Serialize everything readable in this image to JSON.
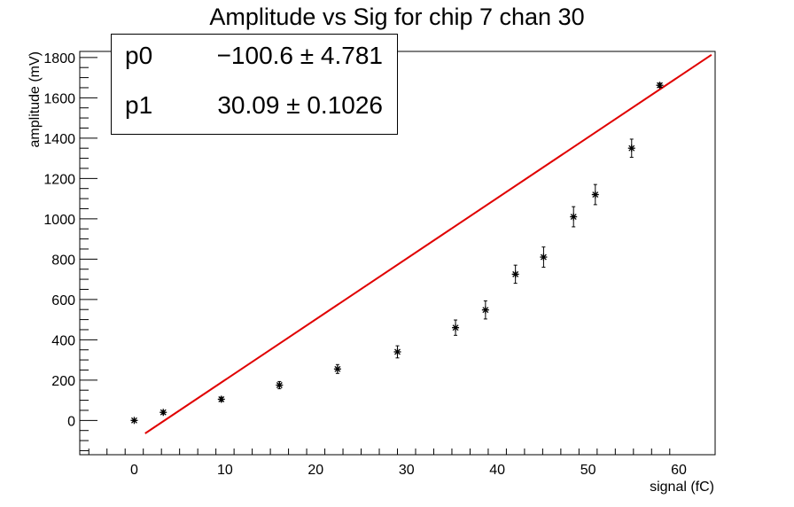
{
  "chart_data": {
    "type": "scatter",
    "title": "Amplitude vs Sig for chip 7 chan 30",
    "xlabel": "signal (fC)",
    "ylabel": "amplitude (mV)",
    "xlim": [
      -6,
      64
    ],
    "ylim": [
      -170,
      1830
    ],
    "x_ticks": [
      0,
      10,
      20,
      30,
      40,
      50,
      60
    ],
    "y_ticks": [
      0,
      200,
      400,
      600,
      800,
      1000,
      1200,
      1400,
      1600,
      1800
    ],
    "series": [
      {
        "marker": "star",
        "color": "#000000",
        "points": [
          {
            "x": 0.0,
            "y": 0,
            "err": 5
          },
          {
            "x": 3.2,
            "y": 40,
            "err": 8
          },
          {
            "x": 9.6,
            "y": 105,
            "err": 10
          },
          {
            "x": 16.0,
            "y": 175,
            "err": 18
          },
          {
            "x": 22.4,
            "y": 255,
            "err": 22
          },
          {
            "x": 29.0,
            "y": 340,
            "err": 30
          },
          {
            "x": 35.4,
            "y": 460,
            "err": 38
          },
          {
            "x": 38.7,
            "y": 548,
            "err": 45
          },
          {
            "x": 42.0,
            "y": 725,
            "err": 45
          },
          {
            "x": 45.1,
            "y": 810,
            "err": 50
          },
          {
            "x": 48.4,
            "y": 1010,
            "err": 50
          },
          {
            "x": 50.8,
            "y": 1120,
            "err": 50
          },
          {
            "x": 54.8,
            "y": 1350,
            "err": 45
          },
          {
            "x": 57.9,
            "y": 1662,
            "err": 10
          }
        ]
      }
    ],
    "fit": {
      "type": "linear",
      "color": "#e00000",
      "p0": -100.6,
      "p1": 30.09,
      "x_range": [
        1.2,
        63.6
      ]
    },
    "stats_box": [
      {
        "name": "p0",
        "value": "−100.6 ± 4.781"
      },
      {
        "name": "p1",
        "value": "30.09 ± 0.1026"
      }
    ]
  }
}
